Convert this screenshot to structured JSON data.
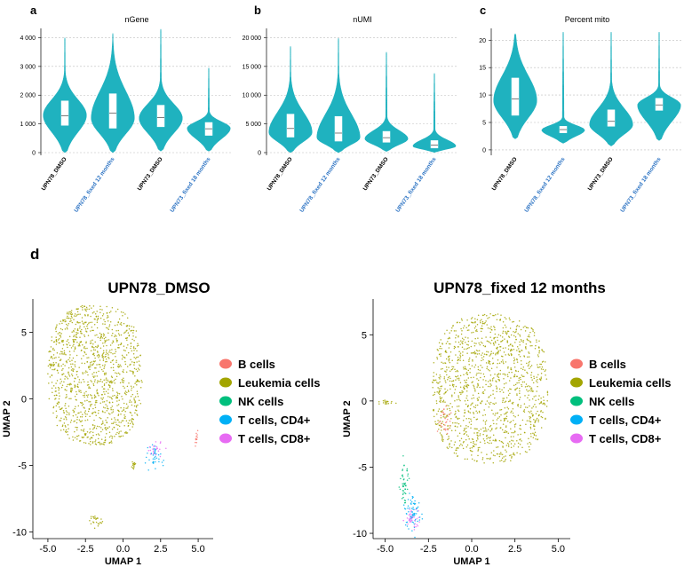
{
  "colors": {
    "violin": "#1fb2bf",
    "box_fill": "#ffffff",
    "grid": "#bdbdbd",
    "xlabel_default": "#000000",
    "xlabel_fixed": "#2f75c4"
  },
  "panel_labels": {
    "a": "a",
    "b": "b",
    "c": "c",
    "d": "d"
  },
  "chart_data": [
    {
      "type": "violin",
      "panel": "a",
      "title": "nGene",
      "categories": [
        "UPN78_DMSO",
        "UPN78_fixed 12 months",
        "UPN73_DMSO",
        "UPN73_fixed 18 months"
      ],
      "ylim": [
        0,
        4200
      ],
      "yticks": [
        0,
        1000,
        2000,
        3000,
        4000
      ],
      "ytick_labels": [
        "0",
        "1 000",
        "2 000",
        "3 000",
        "4 000"
      ],
      "series": [
        {
          "name": "UPN78_DMSO",
          "min": 0,
          "q1": 950,
          "median": 1280,
          "q3": 1800,
          "max": 4000,
          "mode": 1300
        },
        {
          "name": "UPN78_fixed 12 months",
          "min": 0,
          "q1": 850,
          "median": 1380,
          "q3": 2050,
          "max": 4150,
          "mode": 1200
        },
        {
          "name": "UPN73_DMSO",
          "min": 50,
          "q1": 900,
          "median": 1220,
          "q3": 1650,
          "max": 4300,
          "mode": 1200
        },
        {
          "name": "UPN73_fixed 18 months",
          "min": 50,
          "q1": 600,
          "median": 830,
          "q3": 1050,
          "max": 2950,
          "mode": 850
        }
      ]
    },
    {
      "type": "violin",
      "panel": "b",
      "title": "nUMI",
      "categories": [
        "UPN78_DMSO",
        "UPN78_fixed 12 months",
        "UPN73_DMSO",
        "UPN73_fixed 18 months"
      ],
      "ylim": [
        0,
        21000
      ],
      "yticks": [
        0,
        5000,
        10000,
        15000,
        20000
      ],
      "ytick_labels": [
        "0",
        "5 000",
        "10 000",
        "15 000",
        "20 000"
      ],
      "series": [
        {
          "name": "UPN78_DMSO",
          "min": 0,
          "q1": 2700,
          "median": 4200,
          "q3": 6700,
          "max": 18500,
          "mode": 3500
        },
        {
          "name": "UPN78_fixed 12 months",
          "min": 0,
          "q1": 2000,
          "median": 3400,
          "q3": 6300,
          "max": 19900,
          "mode": 2600
        },
        {
          "name": "UPN73_DMSO",
          "min": 200,
          "q1": 1800,
          "median": 2600,
          "q3": 3700,
          "max": 17500,
          "mode": 2400
        },
        {
          "name": "UPN73_fixed 18 months",
          "min": 50,
          "q1": 800,
          "median": 1300,
          "q3": 2100,
          "max": 13800,
          "mode": 1100
        }
      ]
    },
    {
      "type": "violin",
      "panel": "c",
      "title": "Percent  mito",
      "categories": [
        "UPN78_DMSO",
        "UPN78_fixed 12 months",
        "UPN73_DMSO",
        "UPN73_fixed 18 months"
      ],
      "ylim": [
        -0.5,
        21.5
      ],
      "yticks": [
        0,
        5,
        10,
        15,
        20
      ],
      "ytick_labels": [
        "0",
        "5",
        "10",
        "15",
        "20"
      ],
      "series": [
        {
          "name": "UPN78_DMSO",
          "min": 2,
          "q1": 6.3,
          "median": 9.3,
          "q3": 13.1,
          "max": 21.2,
          "mode": 9
        },
        {
          "name": "UPN78_fixed 12 months",
          "min": 1.2,
          "q1": 3.1,
          "median": 3.7,
          "q3": 4.3,
          "max": 21.5,
          "mode": 3.6
        },
        {
          "name": "UPN73_DMSO",
          "min": 0.7,
          "q1": 4.3,
          "median": 5.2,
          "q3": 7.3,
          "max": 21.5,
          "mode": 4.6
        },
        {
          "name": "UPN73_fixed 18 months",
          "min": 1.7,
          "q1": 7.2,
          "median": 8.2,
          "q3": 9.4,
          "max": 21.5,
          "mode": 8.2
        }
      ]
    },
    {
      "type": "scatter",
      "panel": "d",
      "title": "UPN78_DMSO",
      "xlabel": "UMAP 1",
      "ylabel": "UMAP 2",
      "xlim": [
        -6,
        6
      ],
      "ylim": [
        -10.5,
        7.5
      ],
      "xticks": [
        -5.0,
        -2.5,
        0.0,
        2.5,
        5.0
      ],
      "xtick_labels": [
        "-5.0",
        "-2.5",
        "0.0",
        "2.5",
        "5.0"
      ],
      "yticks": [
        5,
        0,
        -5,
        -10
      ],
      "ytick_labels": [
        "5",
        "0",
        "-5",
        "-10"
      ],
      "series": [
        {
          "name": "Leukemia cells",
          "color": "#a3a500",
          "clusters": [
            {
              "kind": "blob",
              "xmin": -5.0,
              "xmax": 1.3,
              "ymin": -3.5,
              "ymax": 7.1,
              "n": 1200
            },
            {
              "kind": "point",
              "cx": 0.7,
              "cy": -5.0,
              "sx": 0.08,
              "sy": 0.25,
              "n": 15
            },
            {
              "kind": "point",
              "cx": -1.8,
              "cy": -9.1,
              "sx": 0.2,
              "sy": 0.35,
              "n": 25
            }
          ]
        },
        {
          "name": "T cells, CD4+",
          "color": "#00b0f6",
          "clusters": [
            {
              "kind": "point",
              "cx": 2.1,
              "cy": -4.3,
              "sx": 0.25,
              "sy": 0.45,
              "n": 40
            }
          ]
        },
        {
          "name": "T cells, CD8+",
          "color": "#e76bf3",
          "clusters": [
            {
              "kind": "point",
              "cx": 2.0,
              "cy": -3.9,
              "sx": 0.35,
              "sy": 0.3,
              "n": 22
            }
          ]
        },
        {
          "name": "B cells",
          "color": "#f8766d",
          "clusters": [
            {
              "kind": "point",
              "cx": 4.9,
              "cy": -2.9,
              "sx": 0.06,
              "sy": 0.3,
              "n": 12
            }
          ]
        }
      ]
    },
    {
      "type": "scatter",
      "panel": "d",
      "title": "UPN78_fixed 12 months",
      "xlabel": "UMAP 1",
      "ylabel": "UMAP 2",
      "xlim": [
        -5.7,
        5.7
      ],
      "ylim": [
        -10.4,
        7.7
      ],
      "xticks": [
        -5.0,
        -2.5,
        0.0,
        2.5,
        5.0
      ],
      "xtick_labels": [
        "-5.0",
        "-2.5",
        "0.0",
        "2.5",
        "5.0"
      ],
      "yticks": [
        5,
        0,
        -5,
        -10
      ],
      "ytick_labels": [
        "5",
        "0",
        "-5",
        "-10"
      ],
      "series": [
        {
          "name": "Leukemia cells",
          "color": "#a3a500",
          "clusters": [
            {
              "kind": "blob",
              "xmin": -2.3,
              "xmax": 4.4,
              "ymin": -4.7,
              "ymax": 6.6,
              "n": 1300
            },
            {
              "kind": "point",
              "cx": -5.0,
              "cy": -0.1,
              "sx": 0.25,
              "sy": 0.08,
              "n": 18
            }
          ]
        },
        {
          "name": "B cells",
          "color": "#f8766d",
          "clusters": [
            {
              "kind": "point",
              "cx": -1.5,
              "cy": -1.5,
              "sx": 0.18,
              "sy": 0.6,
              "n": 30
            }
          ]
        },
        {
          "name": "NK cells",
          "color": "#00bf7d",
          "clusters": [
            {
              "kind": "point",
              "cx": -3.9,
              "cy": -6.2,
              "sx": 0.12,
              "sy": 0.8,
              "n": 45
            }
          ]
        },
        {
          "name": "T cells, CD4+",
          "color": "#00b0f6",
          "clusters": [
            {
              "kind": "point",
              "cx": -3.4,
              "cy": -8.5,
              "sx": 0.22,
              "sy": 0.6,
              "n": 70
            }
          ]
        },
        {
          "name": "T cells, CD8+",
          "color": "#e76bf3",
          "clusters": [
            {
              "kind": "point",
              "cx": -3.4,
              "cy": -8.9,
              "sx": 0.22,
              "sy": 0.4,
              "n": 35
            }
          ]
        }
      ]
    }
  ],
  "legend": {
    "items": [
      {
        "label": "B cells",
        "color": "#f8766d"
      },
      {
        "label": "Leukemia cells",
        "color": "#a3a500"
      },
      {
        "label": "NK cells",
        "color": "#00bf7d"
      },
      {
        "label": "T cells, CD4+",
        "color": "#00b0f6"
      },
      {
        "label": "T cells, CD8+",
        "color": "#e76bf3"
      }
    ]
  }
}
